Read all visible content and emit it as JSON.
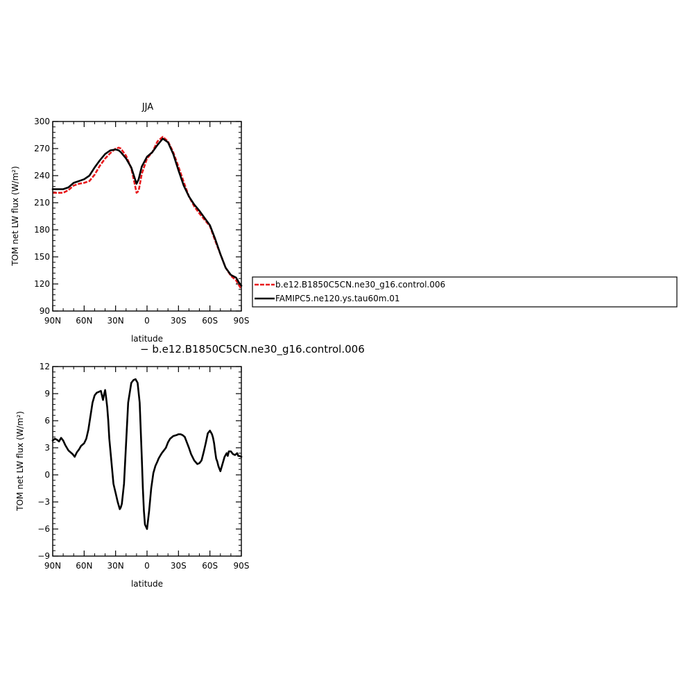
{
  "colors": {
    "control": "#e8191c",
    "famip": "#000000",
    "difference": "#000000",
    "axes": "#000000",
    "background": "#ffffff"
  },
  "chart_data": [
    {
      "id": "top",
      "type": "line",
      "title": "JJA",
      "xlabel": "latitude",
      "ylabel": "TOM net LW flux (W/m²)",
      "xlim": [
        90,
        -90
      ],
      "ylim": [
        90,
        300
      ],
      "xticks": [
        {
          "value": 90,
          "label": "90N"
        },
        {
          "value": 60,
          "label": "60N"
        },
        {
          "value": 30,
          "label": "30N"
        },
        {
          "value": 0,
          "label": "0"
        },
        {
          "value": -30,
          "label": "30S"
        },
        {
          "value": -60,
          "label": "60S"
        },
        {
          "value": -90,
          "label": "90S"
        }
      ],
      "yticks": [
        90,
        120,
        150,
        180,
        210,
        240,
        270,
        300
      ],
      "grid": false,
      "legend": "right",
      "series": [
        {
          "name": "b.e12.B1850C5CN.ne30_g16.control.006",
          "style": "dashed",
          "color": "#e8191c",
          "x": [
            90,
            85,
            80,
            75,
            70,
            65,
            60,
            55,
            50,
            45,
            40,
            35,
            30,
            27,
            25,
            20,
            15,
            12,
            10,
            8,
            5,
            0,
            -5,
            -10,
            -15,
            -20,
            -25,
            -30,
            -35,
            -40,
            -45,
            -50,
            -55,
            -60,
            -65,
            -70,
            -75,
            -80,
            -85,
            -88,
            -90
          ],
          "y": [
            221,
            221,
            221,
            224,
            229,
            231,
            232,
            234,
            241,
            251,
            259,
            265,
            270,
            271,
            270,
            262,
            248,
            232,
            221,
            223,
            242,
            259,
            266,
            278,
            283,
            278,
            266,
            250,
            233,
            217,
            206,
            198,
            191,
            184,
            168,
            153,
            138,
            129,
            124,
            118,
            114
          ]
        },
        {
          "name": "FAMIPC5.ne120.ys.tau60m.01",
          "style": "solid",
          "color": "#000000",
          "x": [
            90,
            85,
            80,
            75,
            70,
            65,
            60,
            55,
            50,
            45,
            40,
            35,
            30,
            27,
            25,
            20,
            15,
            12,
            10,
            8,
            5,
            0,
            -5,
            -10,
            -15,
            -20,
            -25,
            -30,
            -35,
            -40,
            -45,
            -50,
            -55,
            -60,
            -65,
            -70,
            -75,
            -80,
            -85,
            -88,
            -90
          ],
          "y": [
            225,
            225,
            225,
            227,
            232,
            234,
            236,
            240,
            249,
            257,
            264,
            268,
            269,
            268,
            266,
            259,
            249,
            238,
            231,
            236,
            250,
            261,
            266,
            274,
            281,
            277,
            264,
            246,
            229,
            217,
            208,
            201,
            193,
            185,
            170,
            153,
            138,
            130,
            127,
            121,
            118
          ]
        }
      ]
    },
    {
      "id": "bottom",
      "type": "line",
      "title": "",
      "subtitle": "− b.e12.B1850C5CN.ne30_g16.control.006",
      "xlabel": "latitude",
      "ylabel": "TOM net LW flux (W/m²)",
      "xlim": [
        90,
        -90
      ],
      "ylim": [
        -9,
        12
      ],
      "xticks": [
        {
          "value": 90,
          "label": "90N"
        },
        {
          "value": 60,
          "label": "60N"
        },
        {
          "value": 30,
          "label": "30N"
        },
        {
          "value": 0,
          "label": "0"
        },
        {
          "value": -30,
          "label": "30S"
        },
        {
          "value": -60,
          "label": "60S"
        },
        {
          "value": -90,
          "label": "90S"
        }
      ],
      "yticks": [
        -9,
        -6,
        -3,
        0,
        3,
        6,
        9,
        12
      ],
      "grid": false,
      "series": [
        {
          "name": "",
          "style": "solid",
          "color": "#000000",
          "x": [
            90,
            88,
            86,
            84,
            82,
            80,
            78,
            75,
            73,
            71,
            69,
            67,
            65,
            63,
            60,
            58,
            56,
            54,
            52,
            50,
            48,
            46,
            44,
            43,
            42,
            41,
            40,
            39,
            38,
            37,
            36,
            34,
            32,
            30,
            28,
            26,
            25,
            24,
            22,
            20,
            18,
            15,
            13,
            11,
            9,
            7,
            6,
            5,
            4,
            3,
            2,
            0,
            -2,
            -4,
            -6,
            -8,
            -10,
            -11,
            -12,
            -14,
            -16,
            -18,
            -20,
            -22,
            -25,
            -28,
            -30,
            -32,
            -34,
            -36,
            -38,
            -40,
            -42,
            -45,
            -48,
            -50,
            -52,
            -54,
            -56,
            -58,
            -60,
            -62,
            -63,
            -64,
            -65,
            -66,
            -67,
            -68,
            -70,
            -72,
            -74,
            -76,
            -77,
            -78,
            -80,
            -82,
            -84,
            -86,
            -87,
            -88,
            -90
          ],
          "y": [
            3.8,
            4.0,
            3.9,
            3.7,
            4.1,
            3.8,
            3.3,
            2.7,
            2.5,
            2.3,
            2.0,
            2.5,
            2.8,
            3.2,
            3.5,
            4.0,
            5.0,
            6.5,
            8.0,
            8.8,
            9.1,
            9.2,
            9.3,
            8.8,
            8.3,
            8.9,
            9.4,
            8.5,
            7.5,
            6.0,
            4.0,
            1.5,
            -1.0,
            -2.0,
            -3.0,
            -3.8,
            -3.6,
            -3.2,
            -1.0,
            3.5,
            8.0,
            10.2,
            10.5,
            10.6,
            10.2,
            8.0,
            5.0,
            2.0,
            -1.5,
            -4.0,
            -5.5,
            -6.0,
            -4.0,
            -1.5,
            0.2,
            1.0,
            1.5,
            1.8,
            2.0,
            2.4,
            2.7,
            3.0,
            3.6,
            4.0,
            4.3,
            4.4,
            4.5,
            4.5,
            4.4,
            4.2,
            3.6,
            3.0,
            2.3,
            1.6,
            1.2,
            1.3,
            1.6,
            2.5,
            3.5,
            4.6,
            4.9,
            4.5,
            4.1,
            3.5,
            2.6,
            1.8,
            1.5,
            1.0,
            0.4,
            1.2,
            2.0,
            2.4,
            2.1,
            2.6,
            2.6,
            2.3,
            2.2,
            2.4,
            2.1,
            2.1,
            2.0
          ]
        }
      ]
    }
  ]
}
